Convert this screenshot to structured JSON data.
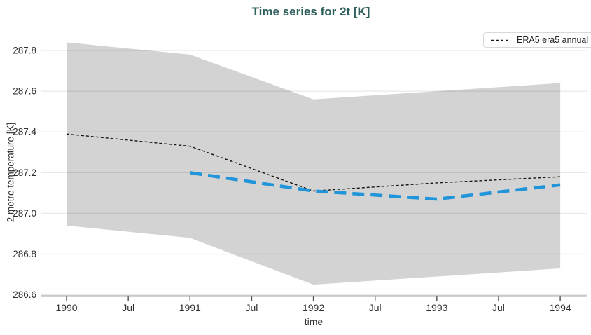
{
  "legend": {
    "entries": [
      {
        "label": "ERA5 era5 annual",
        "line_color": "#141414",
        "line_dash": "4 3"
      }
    ]
  },
  "chart_data": {
    "type": "line",
    "title": "Time series for 2t [K]",
    "xlabel": "time",
    "ylabel": "2 metre temperature [K]",
    "xlim": [
      1989.79,
      1994.215
    ],
    "ylim": [
      286.6,
      287.893
    ],
    "grid": true,
    "legend_position": "top-right",
    "title_color": "#2d5f5b",
    "x_ticks": [
      {
        "value": 1990,
        "label": "1990"
      },
      {
        "value": 1990.5,
        "label": "Jul"
      },
      {
        "value": 1991,
        "label": "1991"
      },
      {
        "value": 1991.5,
        "label": "Jul"
      },
      {
        "value": 1992,
        "label": "1992"
      },
      {
        "value": 1992.5,
        "label": "Jul"
      },
      {
        "value": 1993,
        "label": "1993"
      },
      {
        "value": 1993.5,
        "label": "Jul"
      },
      {
        "value": 1994,
        "label": "1994"
      }
    ],
    "y_ticks": [
      {
        "value": 286.6,
        "label": "286.6"
      },
      {
        "value": 286.8,
        "label": "286.8"
      },
      {
        "value": 287.0,
        "label": "287.0"
      },
      {
        "value": 287.2,
        "label": "287.2"
      },
      {
        "value": 287.4,
        "label": "287.4"
      },
      {
        "value": 287.6,
        "label": "287.6"
      },
      {
        "value": 287.8,
        "label": "287.8"
      }
    ],
    "band": {
      "key": "uncertainty-band",
      "color": "#d3d3d3",
      "x": [
        1990,
        1991,
        1992,
        1993,
        1994
      ],
      "upper": [
        287.84,
        287.78,
        287.56,
        287.6,
        287.64
      ],
      "lower": [
        286.94,
        286.88,
        286.65,
        286.69,
        286.73
      ]
    },
    "series": [
      {
        "key": "era5-annual-line",
        "label": "ERA5 era5 annual",
        "color": "#141414",
        "width": 1.4,
        "dash": "4 3",
        "x": [
          1990,
          1991,
          1992,
          1993,
          1994
        ],
        "y": [
          287.39,
          287.33,
          287.11,
          287.15,
          287.18
        ]
      },
      {
        "key": "blue-annual-line",
        "label": "",
        "color": "#2095da",
        "width": 4.6,
        "dash": "17 9",
        "x": [
          1991,
          1992,
          1993,
          1994
        ],
        "y": [
          287.2,
          287.11,
          287.07,
          287.14
        ]
      }
    ]
  }
}
